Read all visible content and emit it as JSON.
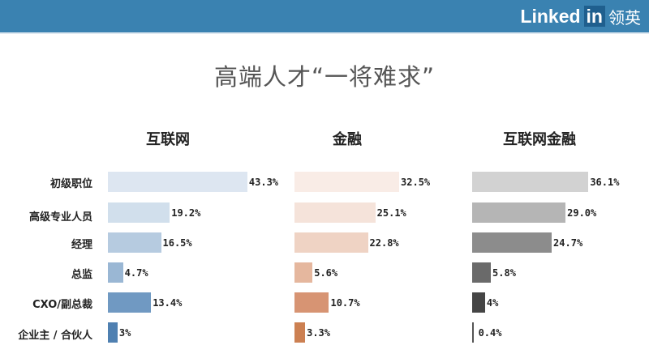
{
  "header": {
    "logo_text": "Linked",
    "logo_in": "in",
    "logo_cn": "领英",
    "background": "#3a82b1"
  },
  "title": "高端人才“一将难求”",
  "chart_data": {
    "type": "bar",
    "orientation": "horizontal",
    "title": "高端人才“一将难求”",
    "categories": [
      "初级职位",
      "高级专业人员",
      "经理",
      "总监",
      "CXO/副总裁",
      "企业主 / 合伙人"
    ],
    "series": [
      {
        "name": "互联网",
        "values": [
          43.3,
          19.2,
          16.5,
          4.7,
          13.4,
          3
        ],
        "labels": [
          "43.3%",
          "19.2%",
          "16.5%",
          "4.7%",
          "13.4%",
          "3%"
        ],
        "colors": [
          "#dde6f1",
          "#d1dfec",
          "#b6cbe0",
          "#9ab7d4",
          "#7099c2",
          "#4f80b1"
        ]
      },
      {
        "name": "金融",
        "values": [
          32.5,
          25.1,
          22.8,
          5.6,
          10.7,
          3.3
        ],
        "labels": [
          "32.5%",
          "25.1%",
          "22.8%",
          "5.6%",
          "10.7%",
          "3.3%"
        ],
        "colors": [
          "#f9ece6",
          "#f5e3da",
          "#efd3c4",
          "#e5b79e",
          "#d79473",
          "#cc8052"
        ]
      },
      {
        "name": "互联网金融",
        "values": [
          36.1,
          29.0,
          24.7,
          5.8,
          4,
          0.4
        ],
        "labels": [
          "36.1%",
          "29.0%",
          "24.7%",
          "5.8%",
          "4%",
          "0.4%"
        ],
        "colors": [
          "#d2d2d2",
          "#b5b5b5",
          "#8c8c8c",
          "#6a6a6a",
          "#454545",
          "#555555"
        ]
      }
    ],
    "xlabel": "",
    "ylabel": "",
    "grid": false,
    "legend": "none (panel titles above each column)"
  }
}
